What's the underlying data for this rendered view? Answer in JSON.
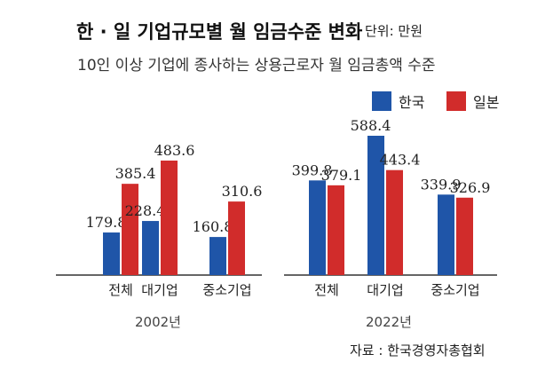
{
  "title": "한 · 일 기업규모별 월 임금수준 변화",
  "unit": "단위: 만원",
  "subtitle": "10인 이상 기업에 종사하는 상용근로자 월 임금총액 수준",
  "source": "자료 : 한국경영자총협회",
  "colors": {
    "korea": "#1f55a8",
    "japan": "#d12c2b",
    "axis": "#333333"
  },
  "chart_data": [
    {
      "type": "bar",
      "panel_label": "2002년",
      "categories": [
        "전체",
        "대기업",
        "중소기업"
      ],
      "series": [
        {
          "name": "한국",
          "values": [
            179.8,
            228.4,
            160.8
          ]
        },
        {
          "name": "일본",
          "values": [
            385.4,
            483.6,
            310.6
          ]
        }
      ]
    },
    {
      "type": "bar",
      "panel_label": "2022년",
      "categories": [
        "전체",
        "대기업",
        "중소기업"
      ],
      "series": [
        {
          "name": "한국",
          "values": [
            399.8,
            588.4,
            339.9
          ]
        },
        {
          "name": "일본",
          "values": [
            379.1,
            443.4,
            326.9
          ]
        }
      ]
    }
  ]
}
